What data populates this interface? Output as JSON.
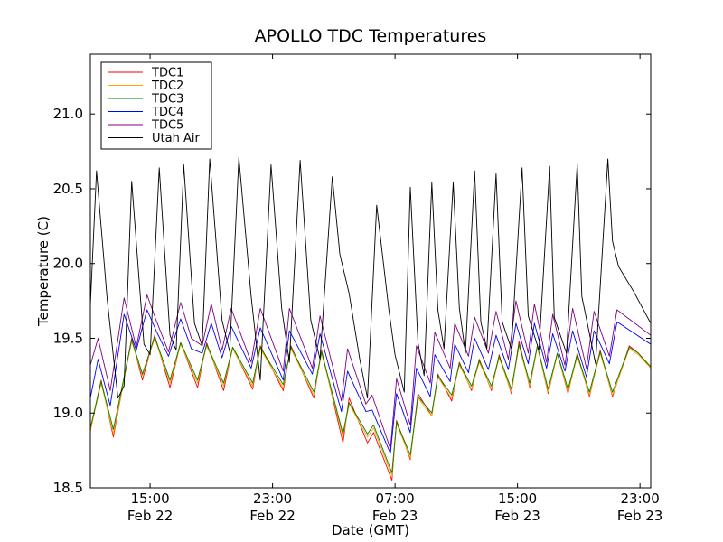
{
  "chart_data": {
    "type": "line",
    "title": "APOLLO TDC Temperatures",
    "xlabel": "Date (GMT)",
    "ylabel": "Temperature (C)",
    "x_unit": "hours since Feb 22 00:00 GMT",
    "xlim": [
      11.1,
      47.7
    ],
    "ylim": [
      18.5,
      21.4
    ],
    "grid": false,
    "legend_position": "top-left",
    "x_ticks": [
      {
        "value": 15,
        "time": "15:00",
        "date": "Feb 22"
      },
      {
        "value": 23,
        "time": "23:00",
        "date": "Feb 22"
      },
      {
        "value": 31,
        "time": "07:00",
        "date": "Feb 23"
      },
      {
        "value": 39,
        "time": "15:00",
        "date": "Feb 23"
      },
      {
        "value": 47,
        "time": "23:00",
        "date": "Feb 23"
      }
    ],
    "y_ticks": [
      {
        "value": 18.5,
        "label": "18.5"
      },
      {
        "value": 19.0,
        "label": "19.0"
      },
      {
        "value": 19.5,
        "label": "19.5"
      },
      {
        "value": 20.0,
        "label": "20.0"
      },
      {
        "value": 20.5,
        "label": "20.5"
      },
      {
        "value": 21.0,
        "label": "21.0"
      }
    ],
    "series": [
      {
        "name": "TDC1",
        "color": "#ff0000",
        "x": [
          11.1,
          11.8,
          12.6,
          13.8,
          14.5,
          15.3,
          16.3,
          17.0,
          18.1,
          18.7,
          19.8,
          20.4,
          21.7,
          22.2,
          23.7,
          24.2,
          25.7,
          26.2,
          27.6,
          28.0,
          29.2,
          29.6,
          30.8,
          31.1,
          32.0,
          32.5,
          33.4,
          33.8,
          34.7,
          35.2,
          36.0,
          36.5,
          37.3,
          37.8,
          38.6,
          39.1,
          39.8,
          40.3,
          41.0,
          41.6,
          42.3,
          42.9,
          43.7,
          44.4,
          45.2,
          46.3,
          46.9,
          47.7
        ],
        "y": [
          18.88,
          19.22,
          18.84,
          19.5,
          19.22,
          19.52,
          19.17,
          19.47,
          19.17,
          19.47,
          19.15,
          19.44,
          19.16,
          19.45,
          19.15,
          19.45,
          19.1,
          19.42,
          18.8,
          19.1,
          18.8,
          18.87,
          18.55,
          18.95,
          18.69,
          19.13,
          18.98,
          19.26,
          19.08,
          19.34,
          19.15,
          19.36,
          19.15,
          19.39,
          19.13,
          19.48,
          19.17,
          19.45,
          19.13,
          19.4,
          19.13,
          19.4,
          19.11,
          19.42,
          19.11,
          19.45,
          19.4,
          19.3
        ]
      },
      {
        "name": "TDC2",
        "color": "#ffa500",
        "x": [
          11.1,
          11.8,
          12.6,
          13.8,
          14.5,
          15.3,
          16.3,
          17.0,
          18.1,
          18.7,
          19.8,
          20.4,
          21.7,
          22.2,
          23.7,
          24.2,
          25.7,
          26.2,
          27.6,
          28.0,
          29.2,
          29.6,
          30.8,
          31.1,
          32.0,
          32.5,
          33.4,
          33.8,
          34.7,
          35.2,
          36.0,
          36.5,
          37.3,
          37.8,
          38.6,
          39.1,
          39.8,
          40.3,
          41.0,
          41.6,
          42.3,
          42.9,
          43.7,
          44.4,
          45.2,
          46.3,
          46.9,
          47.7
        ],
        "y": [
          18.88,
          19.2,
          18.86,
          19.48,
          19.25,
          19.5,
          19.2,
          19.46,
          19.2,
          19.45,
          19.18,
          19.43,
          19.18,
          19.43,
          19.17,
          19.43,
          19.12,
          19.4,
          18.84,
          19.06,
          18.84,
          18.9,
          18.58,
          18.93,
          18.7,
          19.1,
          18.98,
          19.24,
          19.1,
          19.32,
          19.16,
          19.34,
          19.16,
          19.37,
          19.14,
          19.45,
          19.18,
          19.44,
          19.14,
          19.39,
          19.14,
          19.38,
          19.12,
          19.4,
          19.12,
          19.43,
          19.39,
          19.3
        ]
      },
      {
        "name": "TDC3",
        "color": "#008000",
        "x": [
          11.1,
          11.8,
          12.6,
          13.8,
          14.5,
          15.3,
          16.3,
          17.0,
          18.1,
          18.7,
          19.8,
          20.4,
          21.7,
          22.2,
          23.7,
          24.2,
          25.7,
          26.2,
          27.6,
          28.0,
          29.2,
          29.6,
          30.8,
          31.1,
          32.0,
          32.5,
          33.4,
          33.8,
          34.7,
          35.2,
          36.0,
          36.5,
          37.3,
          37.8,
          38.6,
          39.1,
          39.8,
          40.3,
          41.0,
          41.6,
          42.3,
          42.9,
          43.7,
          44.4,
          45.2,
          46.3,
          46.9,
          47.7
        ],
        "y": [
          18.9,
          19.21,
          18.89,
          19.49,
          19.26,
          19.51,
          19.22,
          19.47,
          19.22,
          19.46,
          19.2,
          19.44,
          19.2,
          19.44,
          19.19,
          19.44,
          19.14,
          19.41,
          18.86,
          19.07,
          18.86,
          18.92,
          18.6,
          18.94,
          18.72,
          19.11,
          19.0,
          19.25,
          19.12,
          19.33,
          19.18,
          19.35,
          19.18,
          19.38,
          19.16,
          19.46,
          19.2,
          19.45,
          19.16,
          19.4,
          19.16,
          19.39,
          19.14,
          19.41,
          19.14,
          19.44,
          19.4,
          19.31
        ]
      },
      {
        "name": "TDC4",
        "color": "#0000ff",
        "x": [
          11.1,
          11.6,
          12.4,
          13.3,
          14.1,
          14.8,
          15.4,
          16.2,
          17.0,
          17.7,
          18.4,
          19.0,
          19.7,
          20.3,
          21.6,
          22.2,
          23.7,
          24.1,
          25.6,
          26.1,
          27.5,
          27.9,
          29.1,
          29.5,
          30.7,
          31.1,
          32.0,
          32.4,
          33.3,
          33.6,
          34.6,
          34.9,
          35.8,
          36.2,
          37.1,
          37.6,
          38.4,
          38.9,
          39.7,
          40.1,
          40.9,
          41.3,
          42.1,
          42.6,
          43.5,
          44.0,
          45.0,
          45.5,
          47.7
        ],
        "y": [
          19.1,
          19.36,
          19.05,
          19.66,
          19.42,
          19.69,
          19.55,
          19.38,
          19.63,
          19.43,
          19.4,
          19.6,
          19.37,
          19.58,
          19.3,
          19.57,
          19.22,
          19.55,
          19.26,
          19.53,
          19.01,
          19.28,
          19.01,
          19.02,
          18.73,
          19.13,
          18.87,
          19.3,
          19.11,
          19.39,
          19.21,
          19.46,
          19.27,
          19.5,
          19.29,
          19.52,
          19.29,
          19.6,
          19.33,
          19.6,
          19.3,
          19.53,
          19.28,
          19.55,
          19.24,
          19.55,
          19.33,
          19.61,
          19.46
        ]
      },
      {
        "name": "TDC5",
        "color": "#800080",
        "x": [
          11.1,
          11.6,
          12.4,
          13.3,
          14.1,
          14.8,
          15.4,
          16.2,
          17.0,
          17.7,
          18.4,
          19.0,
          19.7,
          20.3,
          21.6,
          22.2,
          23.7,
          24.1,
          25.6,
          26.1,
          27.5,
          27.9,
          29.1,
          29.5,
          30.7,
          31.1,
          32.0,
          32.4,
          33.3,
          33.6,
          34.6,
          34.9,
          35.8,
          36.2,
          37.1,
          37.6,
          38.4,
          38.9,
          39.7,
          40.1,
          40.9,
          41.3,
          42.1,
          42.6,
          43.5,
          44.0,
          45.0,
          45.5,
          47.7
        ],
        "y": [
          19.32,
          19.5,
          19.15,
          19.77,
          19.44,
          19.79,
          19.62,
          19.41,
          19.74,
          19.5,
          19.45,
          19.73,
          19.42,
          19.7,
          19.34,
          19.7,
          19.28,
          19.7,
          19.3,
          19.65,
          19.08,
          19.43,
          19.06,
          19.12,
          18.76,
          19.23,
          18.92,
          19.45,
          19.2,
          19.54,
          19.3,
          19.6,
          19.38,
          19.64,
          19.4,
          19.68,
          19.36,
          19.75,
          19.4,
          19.73,
          19.34,
          19.66,
          19.32,
          19.7,
          19.3,
          19.68,
          19.38,
          19.69,
          19.52
        ]
      },
      {
        "name": "Utah Air",
        "color": "#000000",
        "x": [
          11.1,
          11.5,
          12.2,
          12.9,
          13.3,
          13.8,
          14.6,
          15.0,
          15.6,
          16.3,
          16.7,
          17.2,
          17.9,
          18.4,
          18.9,
          19.7,
          20.2,
          20.8,
          21.6,
          22.2,
          22.9,
          23.6,
          24.1,
          24.8,
          25.5,
          26.1,
          26.9,
          27.4,
          28.0,
          28.7,
          29.2,
          29.8,
          30.6,
          31.0,
          31.6,
          32.0,
          32.5,
          32.9,
          33.4,
          33.8,
          34.2,
          34.8,
          35.2,
          35.6,
          36.2,
          36.6,
          37.0,
          37.6,
          38.0,
          38.6,
          39.3,
          39.7,
          40.4,
          41.1,
          41.4,
          42.2,
          42.9,
          43.2,
          44.1,
          44.9,
          45.2,
          45.6,
          46.6,
          47.7
        ],
        "y": [
          19.72,
          20.62,
          19.76,
          19.1,
          19.18,
          20.55,
          19.46,
          19.39,
          20.64,
          19.52,
          19.42,
          20.66,
          19.6,
          19.45,
          20.7,
          19.62,
          19.41,
          20.71,
          19.78,
          19.22,
          20.66,
          19.7,
          19.34,
          20.69,
          19.62,
          19.36,
          20.58,
          20.06,
          19.8,
          19.36,
          19.1,
          20.39,
          19.69,
          19.39,
          19.14,
          20.51,
          19.47,
          19.25,
          20.54,
          19.69,
          19.43,
          20.54,
          19.7,
          19.4,
          20.62,
          19.61,
          19.43,
          20.6,
          19.61,
          19.43,
          20.64,
          19.65,
          19.42,
          20.65,
          19.64,
          19.4,
          20.67,
          19.78,
          19.33,
          20.7,
          20.15,
          19.98,
          19.81,
          19.6
        ]
      }
    ]
  }
}
